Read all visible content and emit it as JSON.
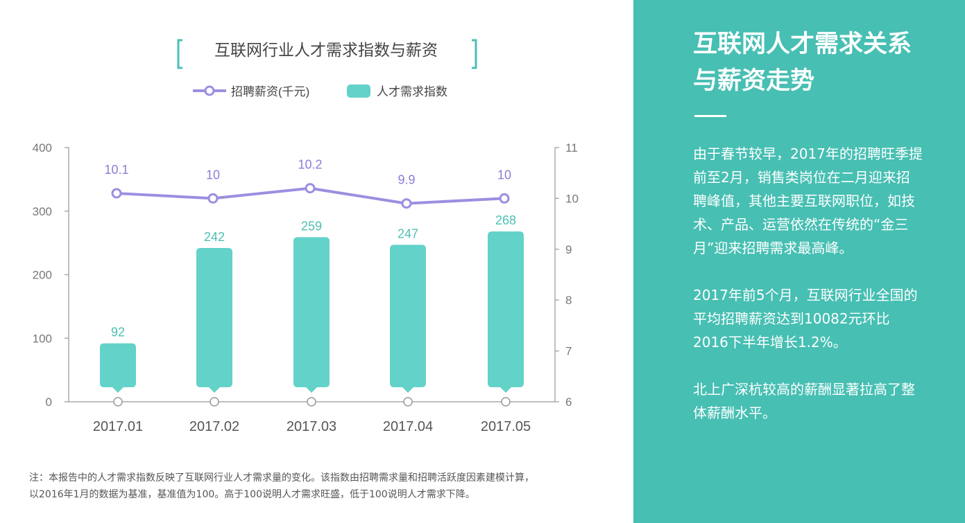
{
  "chart_data": {
    "type": "bar+line",
    "title": "互联网行业人才需求指数与薪资",
    "categories": [
      "2017.01",
      "2017.02",
      "2017.03",
      "2017.04",
      "2017.05"
    ],
    "series": [
      {
        "name": "人才需求指数",
        "type": "bar",
        "axis": "left",
        "color": "#63d2c9",
        "label_color": "#4dbfb4",
        "values": [
          92,
          242,
          259,
          247,
          268
        ],
        "labels": [
          "92",
          "242",
          "259",
          "247",
          "268"
        ]
      },
      {
        "name": "招聘薪资(千元)",
        "type": "line",
        "axis": "right",
        "color": "#9b8fe0",
        "label_color": "#8a7dd8",
        "values": [
          10.1,
          10,
          10.2,
          9.9,
          10
        ],
        "labels": [
          "10.1",
          "10",
          "10.2",
          "9.9",
          "10"
        ]
      }
    ],
    "y_left": {
      "min": 0,
      "max": 400,
      "ticks": [
        "0",
        "100",
        "200",
        "300",
        "400"
      ]
    },
    "y_right": {
      "min": 6,
      "max": 11,
      "ticks": [
        "6",
        "7",
        "8",
        "9",
        "10",
        "11"
      ]
    },
    "legend": [
      "招聘薪资(千元)",
      "人才需求指数"
    ],
    "legend_position": "top-center",
    "grid": false
  },
  "panel": {
    "title_line1": "互联网人才需求关系",
    "title_line2": "与薪资走势",
    "para1": "由于春节较早，2017年的招聘旺季提前至2月，销售类岗位在二月迎来招聘峰值，其他主要互联网职位，如技术、产品、运营依然在传统的“金三月”迎来招聘需求最高峰。",
    "para2": "2017年前5个月，互联网行业全国的平均招聘薪资达到10082元环比2016下半年增长1.2%。",
    "para3": "北上广深杭较高的薪酬显著拉高了整体薪酬水平。"
  },
  "note": {
    "line1": "注：本报告中的人才需求指数反映了互联网行业人才需求量的变化。该指数由招聘需求量和招聘活跃度因素建模计算，",
    "line2": "以2016年1月的数据为基准，基准值为100。高于100说明人才需求旺盛，低于100说明人才需求下降。"
  }
}
